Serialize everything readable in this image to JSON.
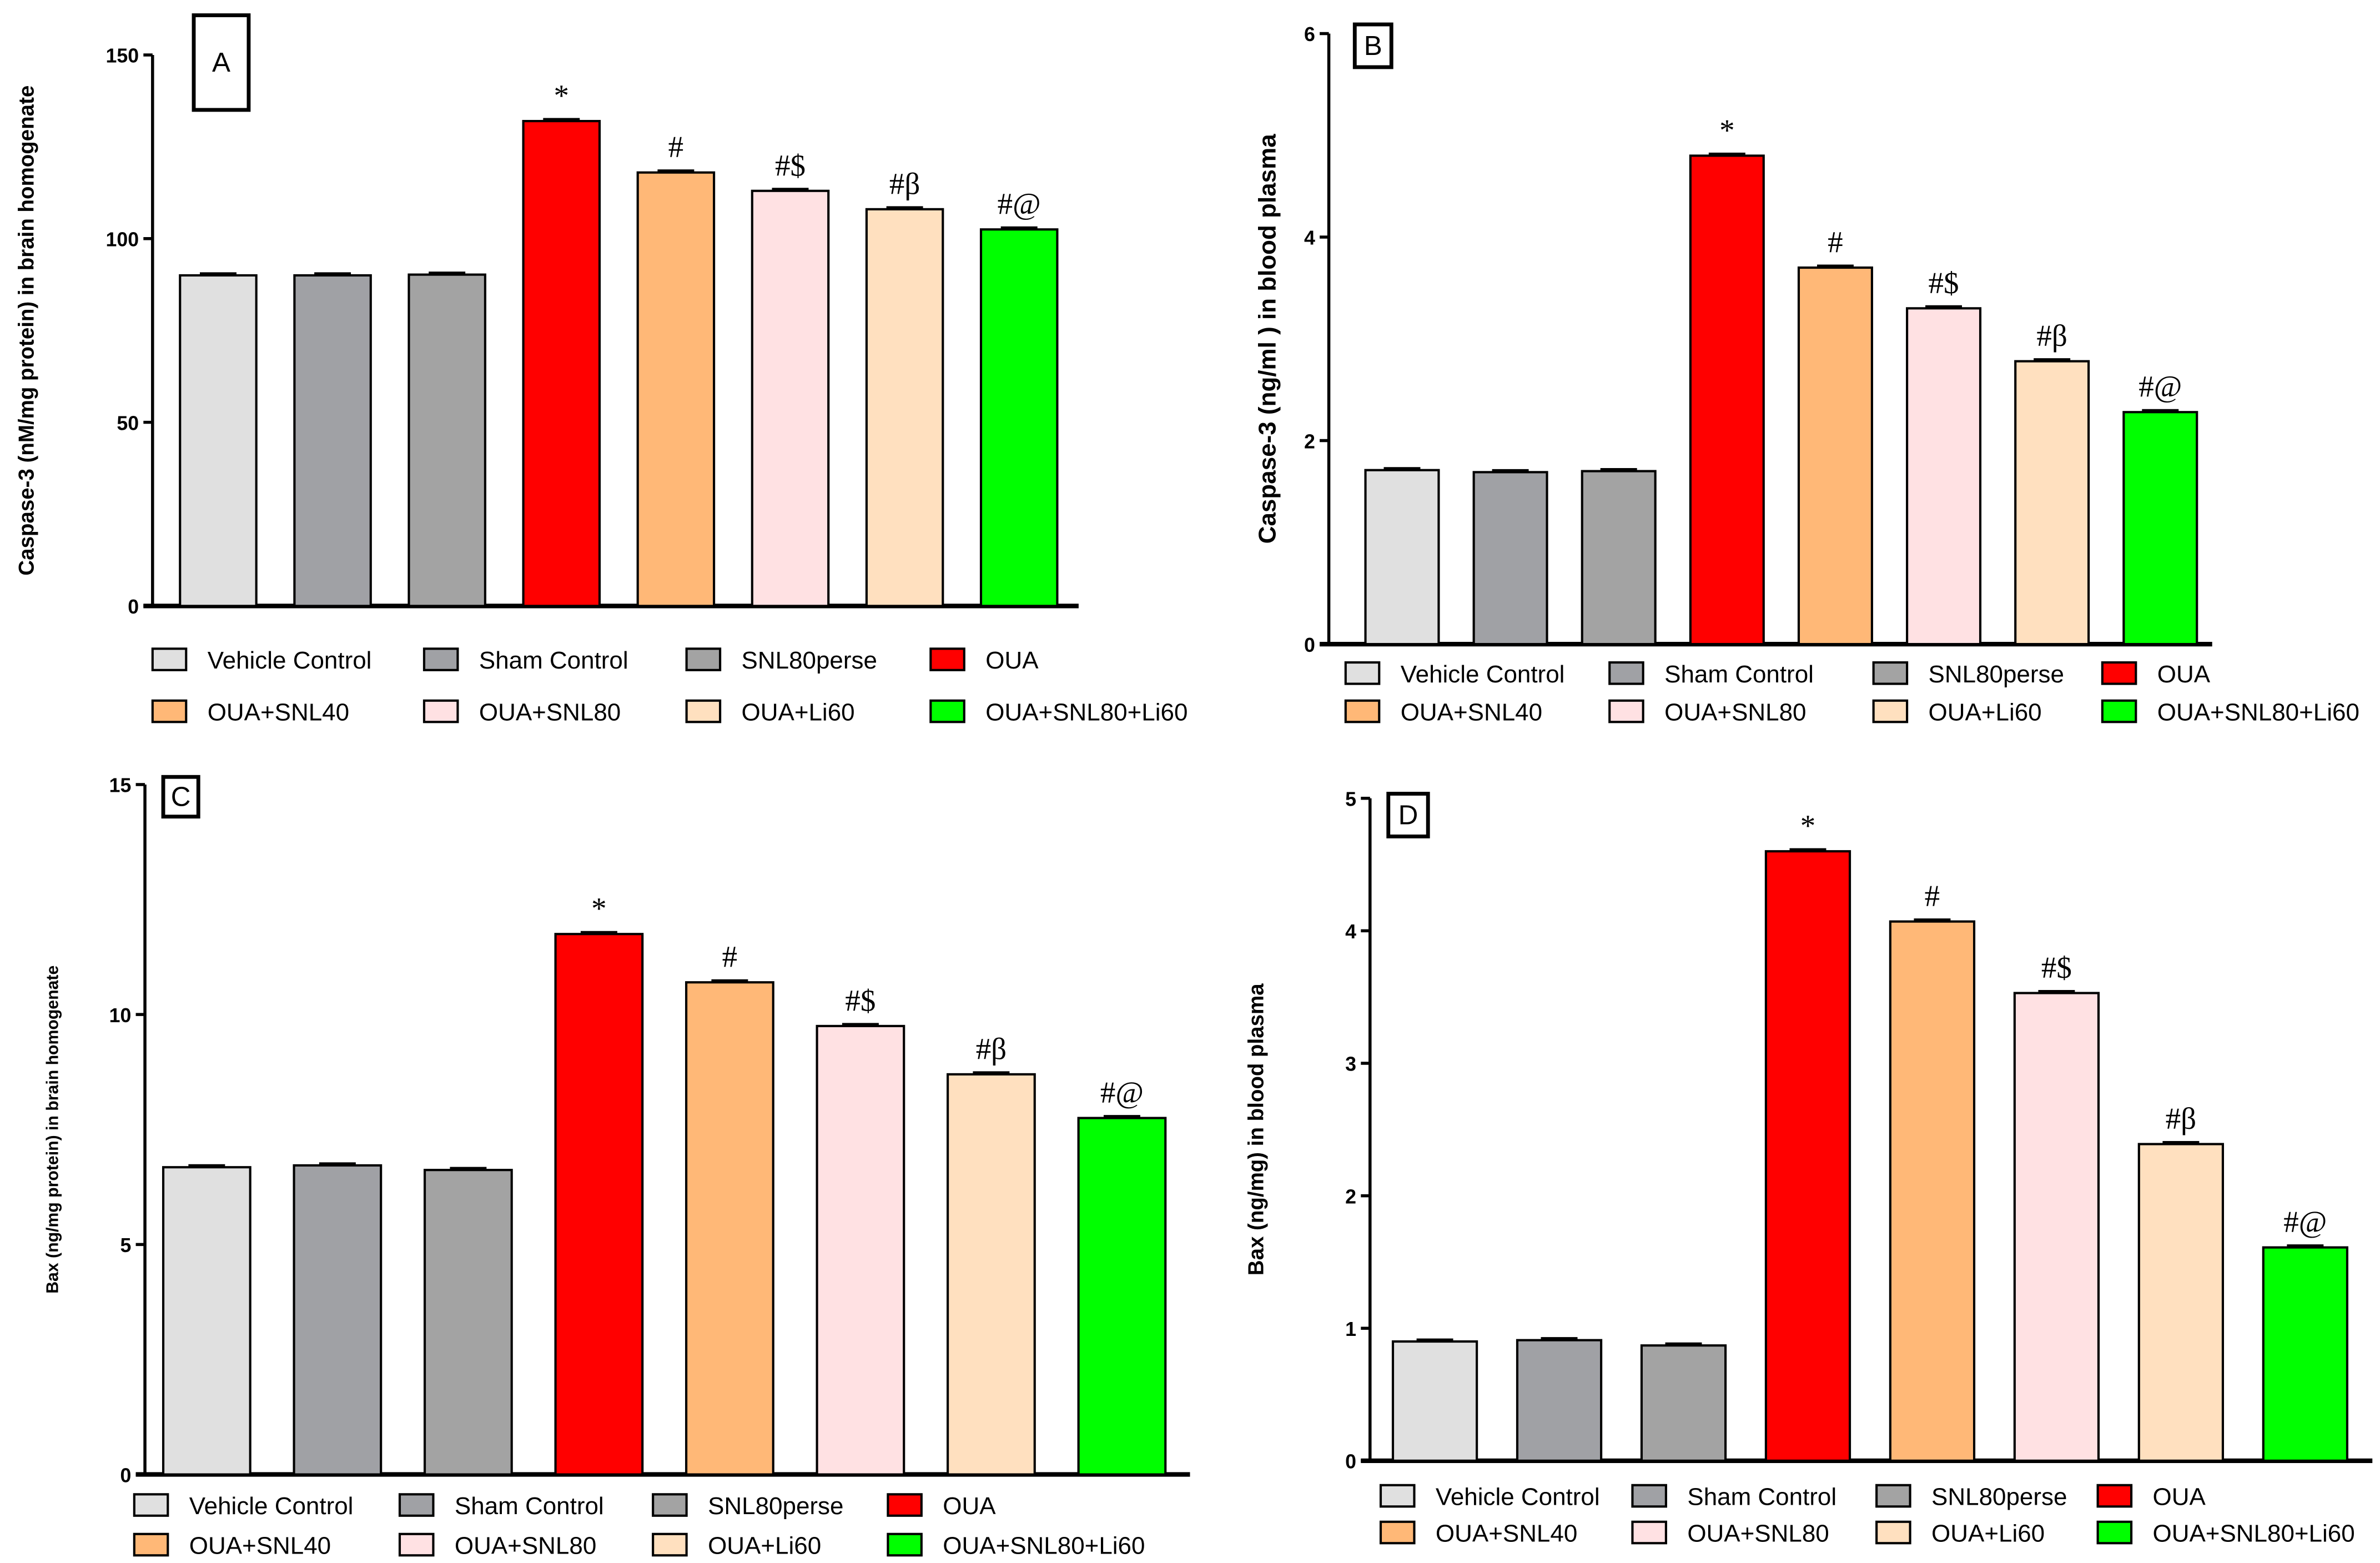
{
  "groups": [
    "Vehicle Control",
    "Sham Control",
    "SNL80perse",
    "OUA",
    "OUA+SNL40",
    "OUA+SNL80",
    "OUA+Li60",
    "OUA+SNL80+Li60"
  ],
  "colors": [
    "#e0e0e0",
    "#a0a1a5",
    "#a3a3a3",
    "#ff0000",
    "#ffb877",
    "#ffe1e3",
    "#ffe0bf",
    "#00ff00"
  ],
  "annotations": [
    "",
    "",
    "",
    "*",
    "#",
    "#$",
    "#β",
    "#@"
  ],
  "chart_data": [
    {
      "type": "bar",
      "panel_label": "A",
      "title": "",
      "xlabel": "",
      "ylabel": "Caspase-3 (nM/mg protein) in brain homogenate",
      "ylim": [
        0,
        150
      ],
      "yticks": [
        0,
        50,
        100,
        150
      ],
      "values": [
        90,
        90,
        90.2,
        132,
        118,
        113,
        108,
        102.5
      ],
      "legend": "bottom"
    },
    {
      "type": "bar",
      "panel_label": "B",
      "title": "",
      "xlabel": "",
      "ylabel": "Caspase-3 (ng/ml ) in blood plasma",
      "ylim": [
        0,
        6
      ],
      "yticks": [
        0,
        2,
        4,
        6
      ],
      "values": [
        1.71,
        1.69,
        1.7,
        4.8,
        3.7,
        3.3,
        2.78,
        2.28
      ],
      "legend": "bottom"
    },
    {
      "type": "bar",
      "panel_label": "C",
      "title": "",
      "xlabel": "",
      "ylabel": "Bax (ng/mg protein) in brain homogenate",
      "ylim": [
        0,
        15
      ],
      "yticks": [
        0,
        5,
        10,
        15
      ],
      "values": [
        6.68,
        6.72,
        6.62,
        11.75,
        10.7,
        9.75,
        8.7,
        7.75
      ],
      "legend": "bottom"
    },
    {
      "type": "bar",
      "panel_label": "D",
      "title": "",
      "xlabel": "",
      "ylabel": "Bax (ng/mg) in blood plasma",
      "ylim": [
        0,
        5
      ],
      "yticks": [
        0,
        1,
        2,
        3,
        4,
        5
      ],
      "values": [
        0.9,
        0.91,
        0.87,
        4.6,
        4.07,
        3.53,
        2.39,
        1.61
      ],
      "legend": "bottom"
    }
  ]
}
